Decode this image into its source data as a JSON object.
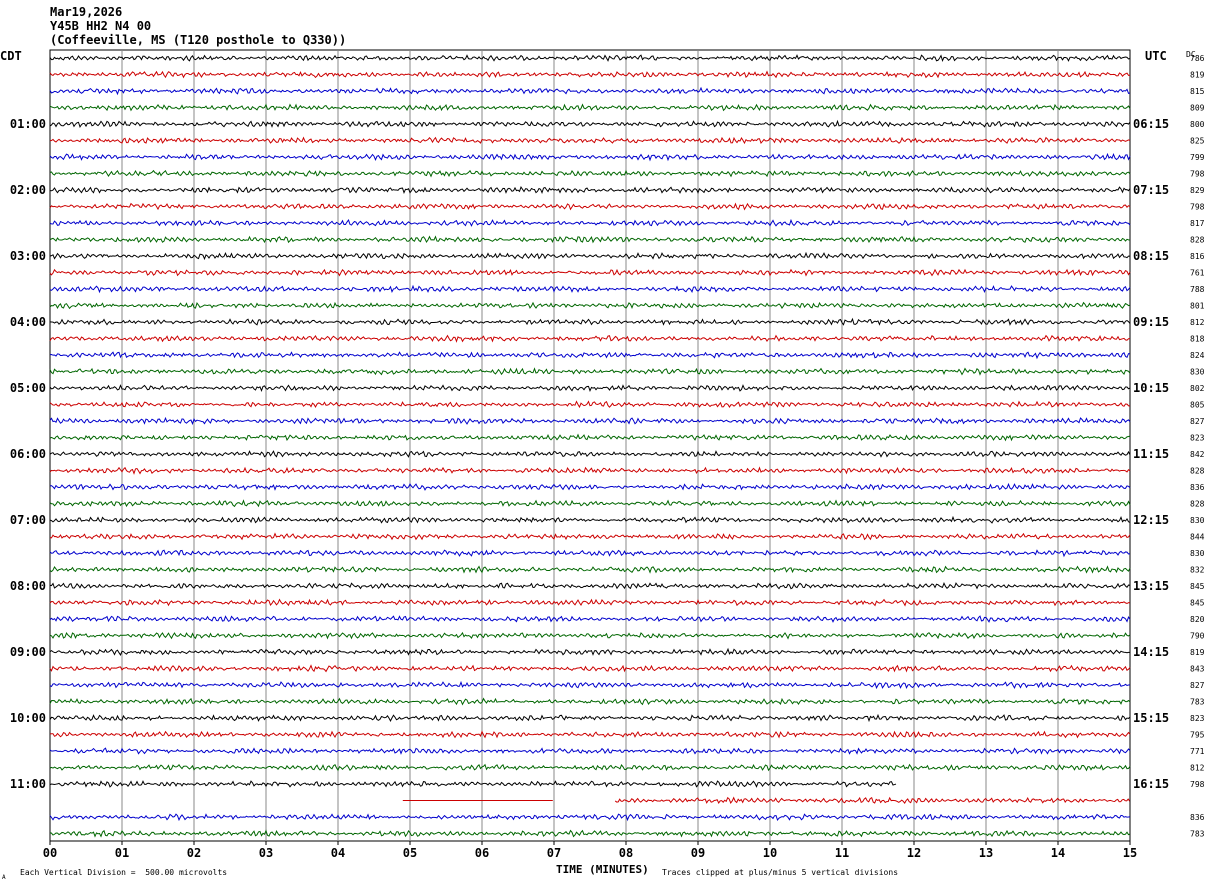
{
  "header": {
    "date": "Mar19,2026",
    "station": "Y45B HH2 N4 00",
    "location": "(Coffeeville, MS (T120 posthole to Q330))"
  },
  "labels": {
    "left_tz": "CDT",
    "right_tz": "UTC",
    "dc_label": "DC",
    "xaxis_title": "TIME (MINUTES)",
    "scale_note": "Each Vertical Division =  500.00 microvolts",
    "clip_note": "Traces clipped at plus/minus 5 vertical divisions",
    "corner_mark": "A"
  },
  "colors": {
    "trace_cycle": [
      "#000000",
      "#cc0000",
      "#0000cc",
      "#006600"
    ],
    "grid": "#888888",
    "frame": "#000000"
  },
  "chart_data": {
    "type": "line",
    "xlabel": "TIME (MINUTES)",
    "x_ticks": [
      "00",
      "01",
      "02",
      "03",
      "04",
      "05",
      "06",
      "07",
      "08",
      "09",
      "10",
      "11",
      "12",
      "13",
      "14",
      "15"
    ],
    "xlim": [
      0,
      15
    ],
    "row_count": 48,
    "left_hour_labels": [
      {
        "row": 4,
        "text": "01:00"
      },
      {
        "row": 8,
        "text": "02:00"
      },
      {
        "row": 12,
        "text": "03:00"
      },
      {
        "row": 16,
        "text": "04:00"
      },
      {
        "row": 20,
        "text": "05:00"
      },
      {
        "row": 24,
        "text": "06:00"
      },
      {
        "row": 28,
        "text": "07:00"
      },
      {
        "row": 32,
        "text": "08:00"
      },
      {
        "row": 36,
        "text": "09:00"
      },
      {
        "row": 40,
        "text": "10:00"
      },
      {
        "row": 44,
        "text": "11:00"
      }
    ],
    "right_hour_labels": [
      {
        "row": 4,
        "text": "06:15"
      },
      {
        "row": 8,
        "text": "07:15"
      },
      {
        "row": 12,
        "text": "08:15"
      },
      {
        "row": 16,
        "text": "09:15"
      },
      {
        "row": 20,
        "text": "10:15"
      },
      {
        "row": 24,
        "text": "11:15"
      },
      {
        "row": 28,
        "text": "12:15"
      },
      {
        "row": 32,
        "text": "13:15"
      },
      {
        "row": 36,
        "text": "14:15"
      },
      {
        "row": 40,
        "text": "15:15"
      },
      {
        "row": 44,
        "text": "16:15"
      }
    ],
    "dc_offsets": [
      "786",
      "819",
      "815",
      "809",
      "800",
      "825",
      "799",
      "798",
      "829",
      "798",
      "817",
      "828",
      "816",
      "761",
      "788",
      "801",
      "812",
      "818",
      "824",
      "830",
      "802",
      "805",
      "827",
      "823",
      "842",
      "828",
      "836",
      "828",
      "830",
      "844",
      "830",
      "832",
      "845",
      "845",
      "820",
      "790",
      "819",
      "843",
      "827",
      "783",
      "823",
      "795",
      "771",
      "812",
      "798",
      "",
      "836",
      "783"
    ],
    "partial_rows": [
      {
        "row": 44,
        "segments": [
          [
            0,
            11.75
          ]
        ]
      },
      {
        "row": 45,
        "segments": [
          [
            4.9,
            7.0
          ],
          [
            7.85,
            15
          ]
        ]
      }
    ],
    "flat_segments": [
      {
        "row": 45,
        "range": [
          4.9,
          7.0
        ]
      }
    ],
    "amplitude_divisions_clip": 5,
    "microvolts_per_division": 500.0
  }
}
